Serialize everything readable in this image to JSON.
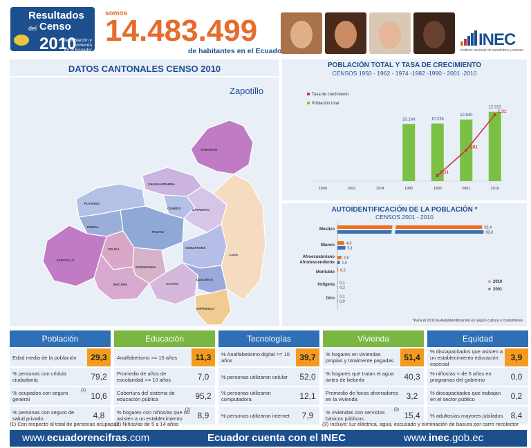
{
  "header": {
    "logo": {
      "line1": "Resultados",
      "line1_small": "del",
      "line2": "Censo",
      "year": "2010",
      "line3a": "de población y vivienda",
      "line3b": "en el Ecuador"
    },
    "somos": "somos",
    "population": "14.483.499",
    "habitantes": "de habitantes en el Ecuador",
    "inec_logo": "INEC",
    "inec_tagline": "Instituto nacional de estadística y censos"
  },
  "map_panel": {
    "title": "DATOS CANTONALES CENSO 2010",
    "canton_name": "Zapotillo",
    "regions": [
      {
        "name": "SABIANGO",
        "color": "#c07bc4"
      },
      {
        "name": "CHAGUARPAMBA",
        "color": "#cbb5e0"
      },
      {
        "name": "OLMEDO",
        "color": "#b3c1e6"
      },
      {
        "name": "PUYANGO",
        "color": "#b3c1e6"
      },
      {
        "name": "PALTAS",
        "color": "#8fa8d6"
      },
      {
        "name": "CATAMAYO",
        "color": "#d7c5e8"
      },
      {
        "name": "PINDAL",
        "color": "#9aaed9"
      },
      {
        "name": "CELICA",
        "color": "#d9a8c8"
      },
      {
        "name": "SOZORANGA",
        "color": "#d6b3c8"
      },
      {
        "name": "GONZANAMÁ",
        "color": "#b6bde6"
      },
      {
        "name": "LOJA",
        "color": "#f5dcc0"
      },
      {
        "name": "ZAPOTILLO",
        "color": "#c07bc4"
      },
      {
        "name": "MACARÁ",
        "color": "#d8a9cf"
      },
      {
        "name": "CALVAS",
        "color": "#d6b8dc"
      },
      {
        "name": "QUILANGA",
        "color": "#9aa8db"
      },
      {
        "name": "ESPÍNDOLA",
        "color": "#f0cc93"
      }
    ]
  },
  "pop_chart": {
    "title": "POBLACIÓN TOTAL Y TASA DE CRECIMIENTO",
    "subtitle": "CENSOS 1950 - 1962 - 1974 -1982 -1990 - 2001 -2010",
    "legend": [
      "Tasa de crecimiento",
      "Población total"
    ]
  },
  "auto_chart": {
    "title": "AUTOIDENTIFICACIÓN DE LA POBLACIÓN *",
    "subtitle": "CENSOS 2001 - 2010",
    "note": "*Para el 2010 la Autoidentificación es según cultura y costumbres"
  },
  "chart_data": [
    {
      "type": "bar",
      "title": "POBLACIÓN TOTAL Y TASA DE CRECIMIENTO",
      "categories": [
        "1950",
        "1962",
        "1974",
        "1982",
        "1990",
        "2001",
        "2010"
      ],
      "series": [
        {
          "name": "Población total",
          "values": [
            null,
            null,
            null,
            10144,
            10234,
            10940,
            12312
          ],
          "labels": [
            "",
            "",
            "",
            "10.144",
            "10.234",
            "10.940",
            "12.312"
          ],
          "color": "#7ac143"
        },
        {
          "name": "Tasa de crecimiento",
          "chart": "line",
          "values": [
            null,
            null,
            null,
            null,
            0.11,
            0.61,
            1.31
          ],
          "labels": [
            "",
            "",
            "",
            "",
            "0,11",
            "0,61",
            "1,31"
          ],
          "color": "#c8383d"
        }
      ]
    },
    {
      "type": "bar",
      "orientation": "horizontal",
      "title": "AUTOIDENTIFICACIÓN DE LA POBLACIÓN *",
      "categories": [
        "Mestizo",
        "Blanco",
        "Afroecuatoriano Afrodescendiente",
        "Montubio",
        "Indígena",
        "Otro"
      ],
      "category_lines": [
        [
          "Mestizo"
        ],
        [
          "Blanco"
        ],
        [
          "Afroecuatoriano",
          "Afrodescendiente"
        ],
        [
          "Montubio"
        ],
        [
          "Indígena"
        ],
        [
          "Otro"
        ]
      ],
      "series": [
        {
          "name": "2010",
          "values": [
            92.4,
            4.3,
            2.6,
            0.5,
            0.1,
            0.1
          ],
          "labels": [
            "92,4",
            "4,3",
            "2,6",
            "0,5",
            "0,1",
            "0,1"
          ],
          "color": "#e9721b"
        },
        {
          "name": "2001",
          "values": [
            93.3,
            5.1,
            1.5,
            null,
            0.2,
            0.0
          ],
          "labels": [
            "93,3",
            "5,1",
            "1,5",
            "",
            "0,2",
            "0,0"
          ],
          "color": "#3d6fb4"
        }
      ],
      "legend_position": "bottom-right"
    }
  ],
  "stats": [
    {
      "title": "Población",
      "color": "blue",
      "rows": [
        {
          "label": "Edad media de la población",
          "value": "29,3",
          "highlight": true
        },
        {
          "label": "% personas con cédula ciudadanía",
          "value": "79,2"
        },
        {
          "label": "% ocupados con seguro general",
          "value": "10,6",
          "sup": "(1)"
        },
        {
          "label": "% personas con seguro de salud privado",
          "value": "4,8"
        }
      ]
    },
    {
      "title": "Educación",
      "color": "green",
      "rows": [
        {
          "label": "Analfabetismo >= 15 años",
          "value": "11,3",
          "highlight": true
        },
        {
          "label": "Promedio de años de escolaridad >= 10 años",
          "value": "7,0"
        },
        {
          "label": "Cobertura del sistema de educación pública",
          "value": "95,2"
        },
        {
          "label": "% hogares con niños/as que no asisten a un establecimiento",
          "value": "8,9",
          "sup": "(2)"
        }
      ]
    },
    {
      "title": "Tecnologías",
      "color": "blue",
      "rows": [
        {
          "label": "% Analfabetismo digital >= 10 años",
          "value": "39,7",
          "highlight": true
        },
        {
          "label": "% personas utilizaron celular",
          "value": "52,0"
        },
        {
          "label": "% personas utilizaron computadora",
          "value": "12,1"
        },
        {
          "label": "% personas utilizaron internet",
          "value": "7,9"
        }
      ]
    },
    {
      "title": "Vivienda",
      "color": "green",
      "rows": [
        {
          "label": "% hogares en viviendas propias y totalmente pagadas",
          "value": "51,4",
          "highlight": true
        },
        {
          "label": "% hogares que tratan el agua antes de beberla",
          "value": "40,3"
        },
        {
          "label": "Promedio de focos ahorradores en la vivienda",
          "value": "3,2"
        },
        {
          "label": "% viviendas con servicios básicos públicos",
          "value": "15,4",
          "sup": "(3)"
        }
      ]
    },
    {
      "title": "Equidad",
      "color": "blue",
      "rows": [
        {
          "label": "% discapacitados que asisten a un establecimiento educación especial",
          "value": "3,9",
          "highlight": true
        },
        {
          "label": "% niños/as < de 5 años en programas del gobierno",
          "value": "0,0"
        },
        {
          "label": "% discapacitados que trabajan en el sector público",
          "value": "0,2"
        },
        {
          "label": "% adultos/as mayores jubilados",
          "value": "8,4"
        }
      ]
    }
  ],
  "footnotes": [
    "(1) Con respecto al total de personas ocupadas",
    "(2) Niños/as de 5 a 14 años",
    "(3) Incluye: luz eléctrica, agua, escusado y eliminación de basura por carro recolector"
  ],
  "bottom_bar": {
    "left_prefix": "www.",
    "left_bold": "ecuadorencifras",
    "left_suffix": ".com",
    "center": "Ecuador cuenta con el INEC",
    "right_prefix": "www.",
    "right_bold": "inec",
    "right_suffix": ".gob.ec"
  }
}
